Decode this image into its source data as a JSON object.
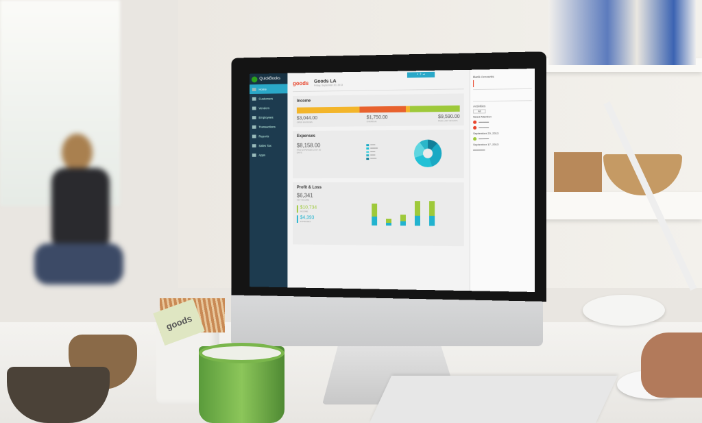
{
  "app": {
    "name": "QuickBooks",
    "logo_text": "goods",
    "company": "Goods LA",
    "date": "Friday, September 20, 2013"
  },
  "sidebar": {
    "items": [
      {
        "label": "Home",
        "active": true
      },
      {
        "label": "Customers"
      },
      {
        "label": "Vendors"
      },
      {
        "label": "Employees"
      },
      {
        "label": "Transactions"
      },
      {
        "label": "Reports"
      },
      {
        "label": "Sales Tax"
      },
      {
        "label": "Apps"
      }
    ]
  },
  "income": {
    "title": "Income",
    "items": [
      {
        "amount": "$3,044.00",
        "label": "Open Invoices",
        "color": "#f3b52a"
      },
      {
        "amount": "$1,750.00",
        "label": "Overdue",
        "color": "#e8612d"
      },
      {
        "amount": "$9,590.00",
        "label": "Paid last 30 days",
        "color": "#9ec93a"
      }
    ]
  },
  "expenses": {
    "title": "Expenses",
    "amount": "$8,158.00",
    "label": "Paid expenses last 30 days",
    "colors": [
      "#1aa9c4",
      "#22c1d6",
      "#5fd6e0",
      "#2bb6c9",
      "#127f99"
    ]
  },
  "profit_loss": {
    "title": "Profit & Loss",
    "net": "$6,341",
    "net_label": "Net income",
    "income": "$10,734",
    "income_label": "Income",
    "expenses": "$4,393",
    "expenses_label": "Expenses",
    "chart_values": [
      0.8,
      0.25,
      0.4,
      0.9,
      0.9
    ]
  },
  "right_panel": {
    "bank_title": "Bank Accounts",
    "activities_title": "Activities",
    "filter": "All",
    "need_attention": "Need Attention",
    "dates": [
      "September 20, 2013",
      "September 17, 2013"
    ]
  },
  "sign": "goods"
}
